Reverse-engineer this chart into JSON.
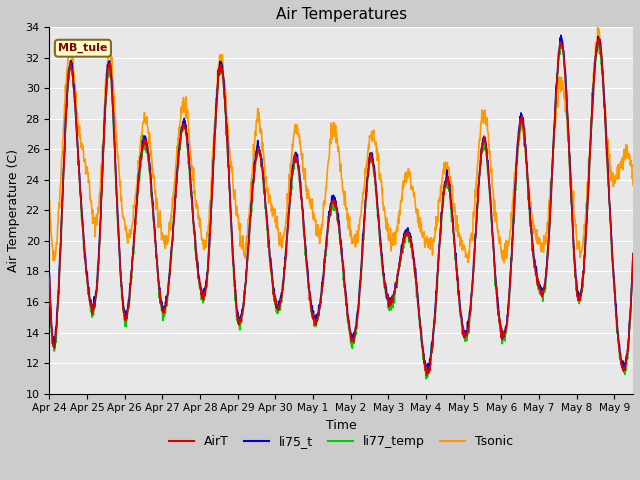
{
  "title": "Air Temperatures",
  "xlabel": "Time",
  "ylabel": "Air Temperature (C)",
  "ylim": [
    10,
    34
  ],
  "yticks": [
    10,
    12,
    14,
    16,
    18,
    20,
    22,
    24,
    26,
    28,
    30,
    32,
    34
  ],
  "x_tick_labels": [
    "Apr 24",
    "Apr 25",
    "Apr 26",
    "Apr 27",
    "Apr 28",
    "Apr 29",
    "Apr 30",
    "May 1",
    "May 2",
    "May 3",
    "May 4",
    "May 5",
    "May 6",
    "May 7",
    "May 8",
    "May 9"
  ],
  "annotation_text": "MB_tule",
  "annotation_bg": "#ffffcc",
  "annotation_border": "#886622",
  "annotation_text_color": "#880000",
  "colors": {
    "AirT": "#dd0000",
    "li75_t": "#0000dd",
    "li77_temp": "#00cc00",
    "Tsonic": "#ff9900"
  },
  "bg_color": "#e8e8e8",
  "grid_color": "#ffffff",
  "line_width": 1.2,
  "figsize": [
    6.4,
    4.8
  ],
  "dpi": 100
}
